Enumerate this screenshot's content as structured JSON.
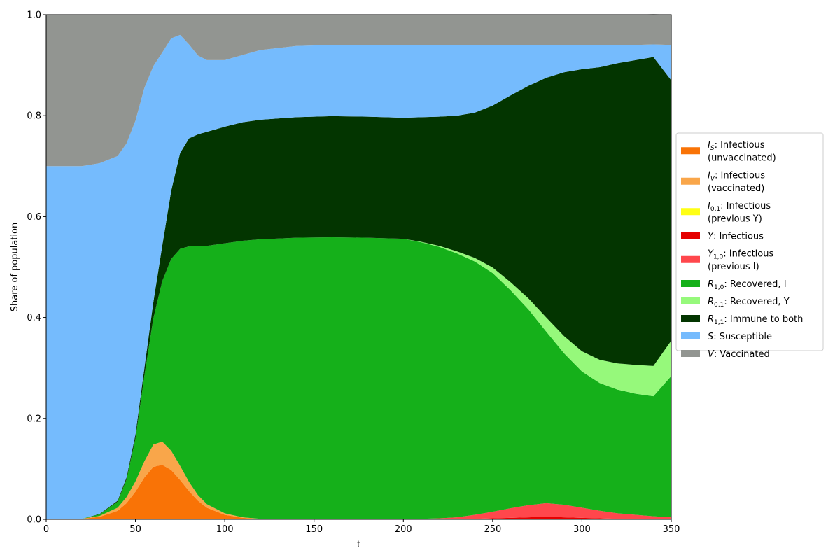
{
  "chart_data": {
    "type": "area",
    "stacked": true,
    "xlabel": "t",
    "ylabel": "Share of population",
    "xlim": [
      0,
      350
    ],
    "ylim": [
      0,
      1.0
    ],
    "xticks": [
      "0",
      "50",
      "100",
      "150",
      "200",
      "250",
      "300",
      "350"
    ],
    "yticks": [
      "0.0",
      "0.2",
      "0.4",
      "0.6",
      "0.8",
      "1.0"
    ],
    "grid": false,
    "legend_position": "right",
    "x": [
      0,
      10,
      20,
      30,
      40,
      45,
      50,
      55,
      60,
      65,
      70,
      75,
      80,
      85,
      90,
      100,
      110,
      120,
      140,
      160,
      180,
      200,
      210,
      220,
      230,
      240,
      250,
      260,
      270,
      280,
      290,
      300,
      310,
      320,
      330,
      340,
      350
    ],
    "series": [
      {
        "key": "I_S",
        "legend": [
          {
            "italic": "I",
            "sub": "S",
            "rest": ": Infectious"
          },
          {
            "italic": "",
            "sub": "",
            "rest": "(unvaccinated)"
          }
        ],
        "color": "#f97306",
        "values": [
          0,
          0,
          0.001,
          0.005,
          0.017,
          0.032,
          0.055,
          0.083,
          0.104,
          0.108,
          0.098,
          0.078,
          0.056,
          0.037,
          0.023,
          0.009,
          0.003,
          0.001,
          0,
          0,
          0,
          0,
          0,
          0,
          0,
          0,
          0,
          0,
          0,
          0,
          0,
          0,
          0,
          0,
          0,
          0,
          0
        ]
      },
      {
        "key": "I_V",
        "legend": [
          {
            "italic": "I",
            "sub": "V",
            "rest": ": Infectious"
          },
          {
            "italic": "",
            "sub": "",
            "rest": "(vaccinated)"
          }
        ],
        "color": "#f9a64a",
        "values": [
          0,
          0,
          0,
          0.002,
          0.006,
          0.012,
          0.02,
          0.032,
          0.044,
          0.046,
          0.038,
          0.028,
          0.018,
          0.011,
          0.007,
          0.003,
          0.001,
          0,
          0,
          0,
          0,
          0,
          0,
          0,
          0,
          0,
          0,
          0,
          0,
          0,
          0,
          0,
          0,
          0,
          0,
          0,
          0
        ]
      },
      {
        "key": "I_01",
        "legend": [
          {
            "italic": "I",
            "sub": "0,1",
            "rest": ": Infectious"
          },
          {
            "italic": "",
            "sub": "",
            "rest": "(previous Y)"
          }
        ],
        "color": "#ffff14",
        "values": [
          0,
          0,
          0,
          0,
          0,
          0,
          0,
          0,
          0,
          0,
          0,
          0,
          0,
          0,
          0,
          0,
          0,
          0,
          0,
          0,
          0,
          0,
          0,
          0,
          0,
          0,
          0,
          0,
          0,
          0,
          0,
          0,
          0,
          0,
          0,
          0,
          0
        ]
      },
      {
        "key": "Y",
        "legend": [
          {
            "italic": "Y",
            "sub": "",
            "rest": ": Infectious"
          }
        ],
        "color": "#e50000",
        "values": [
          0,
          0,
          0,
          0,
          0,
          0,
          0,
          0,
          0,
          0,
          0,
          0,
          0,
          0,
          0,
          0,
          0,
          0,
          0,
          0,
          0,
          0,
          0,
          0,
          0,
          0.001,
          0.002,
          0.003,
          0.004,
          0.005,
          0.004,
          0.003,
          0.002,
          0.001,
          0.001,
          0,
          0
        ]
      },
      {
        "key": "Y_10",
        "legend": [
          {
            "italic": "Y",
            "sub": "1,0",
            "rest": ": Infectious"
          },
          {
            "italic": "",
            "sub": "",
            "rest": "(previous I)"
          }
        ],
        "color": "#ff474c",
        "values": [
          0,
          0,
          0,
          0,
          0,
          0,
          0,
          0,
          0,
          0,
          0,
          0,
          0,
          0,
          0,
          0,
          0,
          0,
          0,
          0,
          0,
          0.001,
          0.001,
          0.002,
          0.004,
          0.008,
          0.013,
          0.019,
          0.024,
          0.027,
          0.025,
          0.02,
          0.015,
          0.011,
          0.008,
          0.006,
          0.004
        ]
      },
      {
        "key": "R_10",
        "legend": [
          {
            "italic": "R",
            "sub": "1,0",
            "rest": ": Recovered, I"
          }
        ],
        "color": "#15b01a",
        "values": [
          0,
          0,
          0,
          0.003,
          0.012,
          0.035,
          0.085,
          0.17,
          0.25,
          0.318,
          0.38,
          0.43,
          0.467,
          0.493,
          0.512,
          0.535,
          0.548,
          0.554,
          0.558,
          0.559,
          0.558,
          0.555,
          0.548,
          0.538,
          0.523,
          0.502,
          0.473,
          0.432,
          0.388,
          0.34,
          0.3,
          0.27,
          0.253,
          0.245,
          0.24,
          0.238,
          0.28
        ]
      },
      {
        "key": "R_01",
        "legend": [
          {
            "italic": "R",
            "sub": "0,1",
            "rest": ": Recovered, Y"
          }
        ],
        "color": "#96f97b",
        "values": [
          0,
          0,
          0,
          0,
          0,
          0,
          0,
          0,
          0,
          0,
          0,
          0,
          0,
          0,
          0,
          0,
          0,
          0,
          0,
          0,
          0,
          0,
          0.001,
          0.002,
          0.004,
          0.007,
          0.011,
          0.016,
          0.022,
          0.028,
          0.034,
          0.04,
          0.046,
          0.052,
          0.057,
          0.06,
          0.07
        ]
      },
      {
        "key": "R_11",
        "legend": [
          {
            "italic": "R",
            "sub": "1,1",
            "rest": ": Immune to both"
          }
        ],
        "color": "#033500",
        "values": [
          0,
          0,
          0,
          0.001,
          0.002,
          0.004,
          0.008,
          0.015,
          0.032,
          0.07,
          0.135,
          0.19,
          0.214,
          0.222,
          0.226,
          0.231,
          0.235,
          0.237,
          0.239,
          0.24,
          0.24,
          0.24,
          0.247,
          0.256,
          0.269,
          0.288,
          0.321,
          0.37,
          0.421,
          0.475,
          0.523,
          0.559,
          0.58,
          0.595,
          0.604,
          0.612,
          0.516
        ]
      },
      {
        "key": "S",
        "legend": [
          {
            "italic": "S",
            "sub": "",
            "rest": ": Susceptible"
          }
        ],
        "color": "#75bbfd",
        "values": [
          0.7,
          0.7,
          0.699,
          0.695,
          0.683,
          0.662,
          0.622,
          0.555,
          0.468,
          0.383,
          0.302,
          0.234,
          0.186,
          0.156,
          0.142,
          0.132,
          0.133,
          0.138,
          0.141,
          0.141,
          0.142,
          0.144,
          0.143,
          0.142,
          0.14,
          0.134,
          0.12,
          0.1,
          0.081,
          0.065,
          0.054,
          0.048,
          0.044,
          0.036,
          0.03,
          0.025,
          0.07
        ]
      },
      {
        "key": "V",
        "legend": [
          {
            "italic": "V",
            "sub": "",
            "rest": ": Vaccinated"
          }
        ],
        "color": "#929591",
        "values": [
          0.3,
          0.3,
          0.3,
          0.294,
          0.28,
          0.255,
          0.21,
          0.145,
          0.102,
          0.075,
          0.047,
          0.04,
          0.059,
          0.081,
          0.09,
          0.09,
          0.08,
          0.07,
          0.062,
          0.06,
          0.06,
          0.06,
          0.06,
          0.06,
          0.06,
          0.06,
          0.06,
          0.06,
          0.06,
          0.06,
          0.06,
          0.06,
          0.06,
          0.06,
          0.06,
          0.06,
          0.06
        ]
      }
    ]
  }
}
